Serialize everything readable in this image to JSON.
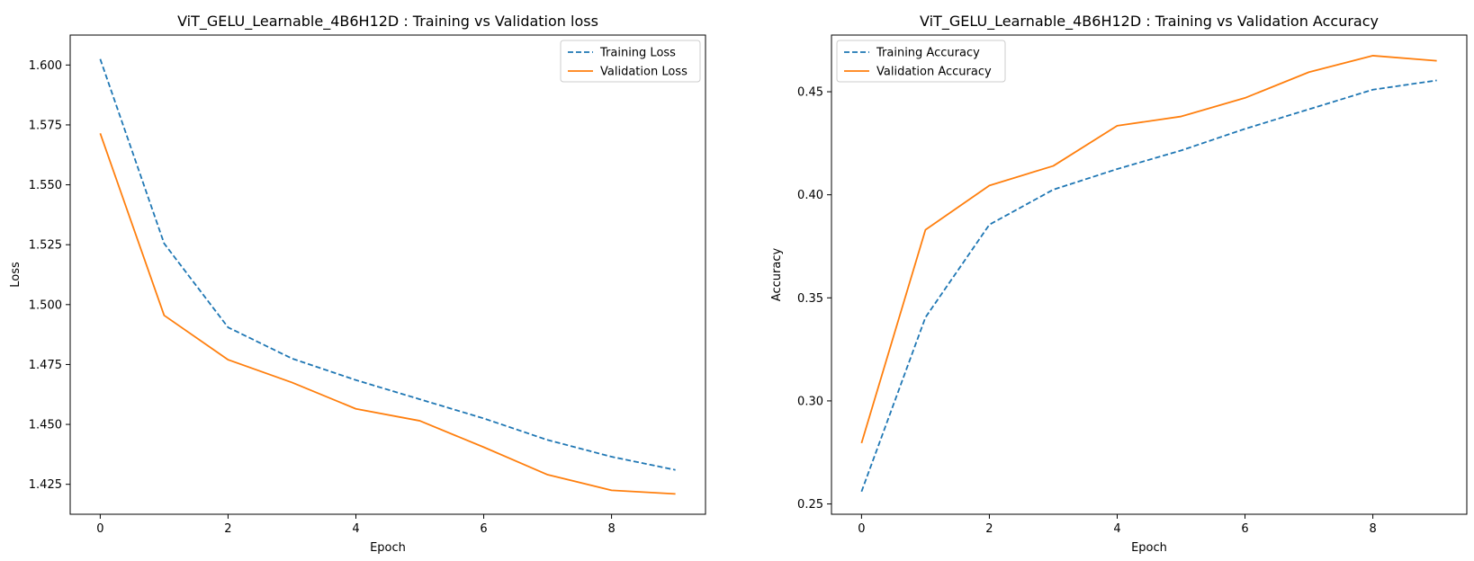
{
  "chart_data": [
    {
      "type": "line",
      "title": "ViT_GELU_Learnable_4B6H12D : Training vs Validation loss",
      "xlabel": "Epoch",
      "ylabel": "Loss",
      "xlim": [
        -0.47,
        9.47
      ],
      "ylim": [
        1.4125,
        1.6125
      ],
      "xticks": [
        0,
        2,
        4,
        6,
        8
      ],
      "yticks": [
        1.425,
        1.45,
        1.475,
        1.5,
        1.525,
        1.55,
        1.575,
        1.6
      ],
      "ytick_labels": [
        "1.425",
        "1.450",
        "1.475",
        "1.500",
        "1.525",
        "1.550",
        "1.575",
        "1.600"
      ],
      "grid": false,
      "legend_position": "top-right",
      "x": [
        0,
        1,
        2,
        3,
        4,
        5,
        6,
        7,
        8,
        9
      ],
      "series": [
        {
          "name": "Training Loss",
          "color": "#1f77b4",
          "dashed": true,
          "values": [
            1.6025,
            1.5255,
            1.4905,
            1.4775,
            1.4685,
            1.4605,
            1.4525,
            1.4435,
            1.4365,
            1.431
          ]
        },
        {
          "name": "Validation Loss",
          "color": "#ff7f0e",
          "dashed": false,
          "values": [
            1.5715,
            1.4955,
            1.477,
            1.4675,
            1.4565,
            1.4515,
            1.4405,
            1.429,
            1.4225,
            1.421
          ]
        }
      ]
    },
    {
      "type": "line",
      "title": "ViT_GELU_Learnable_4B6H12D : Training vs Validation Accuracy",
      "xlabel": "Epoch",
      "ylabel": "Accuracy",
      "xlim": [
        -0.47,
        9.47
      ],
      "ylim": [
        0.245,
        0.4775
      ],
      "xticks": [
        0,
        2,
        4,
        6,
        8
      ],
      "yticks": [
        0.25,
        0.3,
        0.35,
        0.4,
        0.45
      ],
      "ytick_labels": [
        "0.25",
        "0.30",
        "0.35",
        "0.40",
        "0.45"
      ],
      "grid": false,
      "legend_position": "top-left",
      "x": [
        0,
        1,
        2,
        3,
        4,
        5,
        6,
        7,
        8,
        9
      ],
      "series": [
        {
          "name": "Training Accuracy",
          "color": "#1f77b4",
          "dashed": true,
          "values": [
            0.256,
            0.3405,
            0.3855,
            0.4025,
            0.4125,
            0.4215,
            0.432,
            0.4415,
            0.451,
            0.4555
          ]
        },
        {
          "name": "Validation Accuracy",
          "color": "#ff7f0e",
          "dashed": false,
          "values": [
            0.2795,
            0.383,
            0.4045,
            0.414,
            0.4335,
            0.438,
            0.447,
            0.4595,
            0.4675,
            0.465
          ]
        }
      ]
    }
  ]
}
